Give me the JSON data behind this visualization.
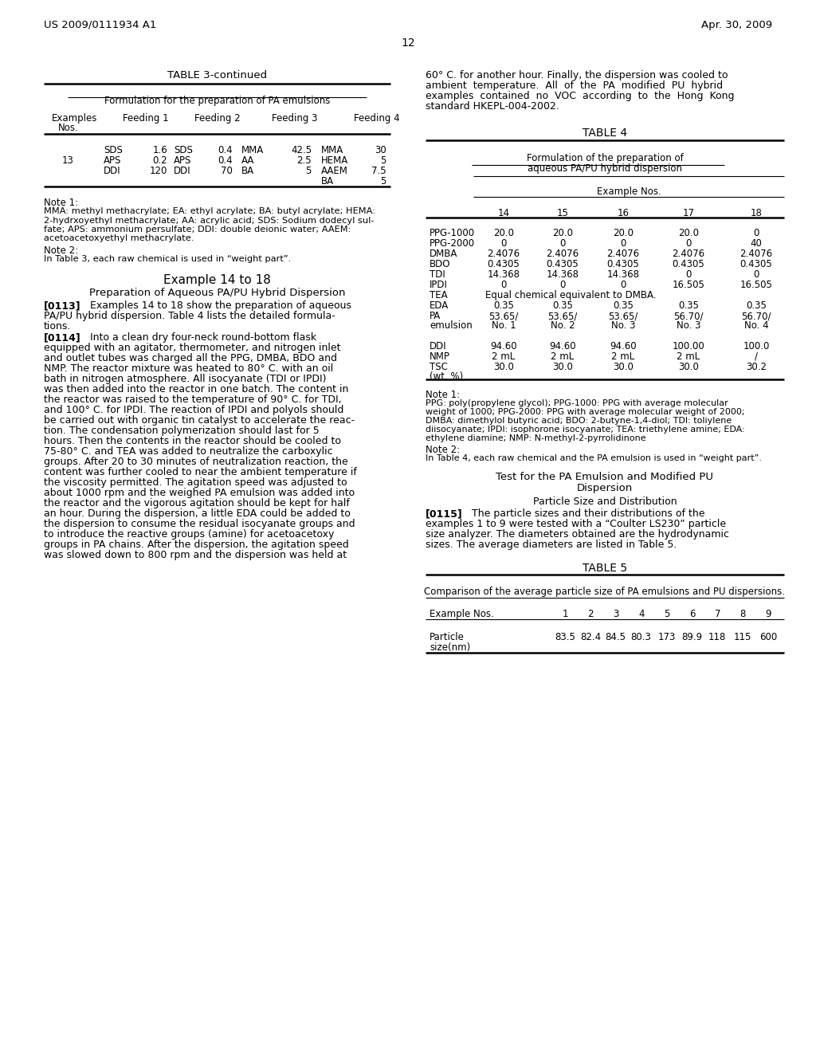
{
  "page_header_left": "US 2009/0111934 A1",
  "page_header_right": "Apr. 30, 2009",
  "page_number": "12",
  "background_color": "#ffffff",
  "text_color": "#000000",
  "table3_title": "TABLE 3-continued",
  "table3_subtitle": "Formulation for the preparation of PA emulsions",
  "table3_note1": "Note 1:",
  "table3_note1_lines": [
    "MMA: methyl methacrylate; EA: ethyl acrylate; BA: butyl acrylate; HEMA:",
    "2-hydrxoyethyl methacrylate; AA: acrylic acid; SDS: Sodium dodecyl sul-",
    "fate; APS: ammonium persulfate; DDI: double deionic water; AAEM:",
    "acetoacetoxyethyl methacrylate."
  ],
  "table3_note2": "Note 2:",
  "table3_note2_text": "In Table 3, each raw chemical is used in “weight part”.",
  "example_heading": "Example 14 to 18",
  "example_subheading": "Preparation of Aqueous PA/PU Hybrid Dispersion",
  "para0113_lines": [
    "[0113]    Examples 14 to 18 show the preparation of aqueous",
    "PA/PU hybrid dispersion. Table 4 lists the detailed formula-",
    "tions."
  ],
  "para0114_lines": [
    "[0114]    Into a clean dry four-neck round-bottom flask",
    "equipped with an agitator, thermometer, and nitrogen inlet",
    "and outlet tubes was charged all the PPG, DMBA, BDO and",
    "NMP. The reactor mixture was heated to 80° C. with an oil",
    "bath in nitrogen atmosphere. All isocyanate (TDI or IPDI)",
    "was then added into the reactor in one batch. The content in",
    "the reactor was raised to the temperature of 90° C. for TDI,",
    "and 100° C. for IPDI. The reaction of IPDI and polyols should",
    "be carried out with organic tin catalyst to accelerate the reac-",
    "tion. The condensation polymerization should last for 5",
    "hours. Then the contents in the reactor should be cooled to",
    "75-80° C. and TEA was added to neutralize the carboxylic",
    "groups. After 20 to 30 minutes of neutralization reaction, the",
    "content was further cooled to near the ambient temperature if",
    "the viscosity permitted. The agitation speed was adjusted to",
    "about 1000 rpm and the weighed PA emulsion was added into",
    "the reactor and the vigorous agitation should be kept for half",
    "an hour. During the dispersion, a little EDA could be added to",
    "the dispersion to consume the residual isocyanate groups and",
    "to introduce the reactive groups (amine) for acetoacetoxy",
    "groups in PA chains. After the dispersion, the agitation speed",
    "was slowed down to 800 rpm and the dispersion was held at"
  ],
  "right_intro_lines": [
    "60° C. for another hour. Finally, the dispersion was cooled to",
    "ambient  temperature.  All  of  the  PA  modified  PU  hybrid",
    "examples  contained  no  VOC  according  to  the  Hong  Kong",
    "standard HKEPL-004-2002."
  ],
  "table4_title": "TABLE 4",
  "table4_subtitle1": "Formulation of the preparation of",
  "table4_subtitle2": "aqueous PA/PU hybrid dispersion",
  "table4_example_header": "Example Nos.",
  "table4_note1": "Note 1:",
  "table4_note1_lines": [
    "PPG: poly(propylene glycol); PPG-1000: PPG with average molecular",
    "weight of 1000; PPG-2000: PPG with average molecular weight of 2000;",
    "DMBA: dimethylol butyric acid; BDO: 2-butyne-1,4-diol; TDI: toliylene",
    "diisocyanate; IPDI: isophorone isocyanate; TEA: triethylene amine; EDA:",
    "ethylene diamine; NMP: N-methyl-2-pyrrolidinone"
  ],
  "table4_note2": "Note 2:",
  "table4_note2_text": "In Table 4, each raw chemical and the PA emulsion is used in “weight part”.",
  "test_heading1": "Test for the PA Emulsion and Modified PU",
  "test_heading2": "Dispersion",
  "particle_subheading": "Particle Size and Distribution",
  "para0115_lines": [
    "[0115]    The particle sizes and their distributions of the",
    "examples 1 to 9 were tested with a “Coulter LS230” particle",
    "size analyzer. The diameters obtained are the hydrodynamic",
    "sizes. The average diameters are listed in Table 5."
  ],
  "table5_title": "TABLE 5",
  "table5_subtitle": "Comparison of the average particle size of PA emulsions and PU dispersions.",
  "table5_values": [
    "83.5",
    "82.4",
    "84.5",
    "80.3",
    "173",
    "89.9",
    "118",
    "115",
    "600"
  ]
}
